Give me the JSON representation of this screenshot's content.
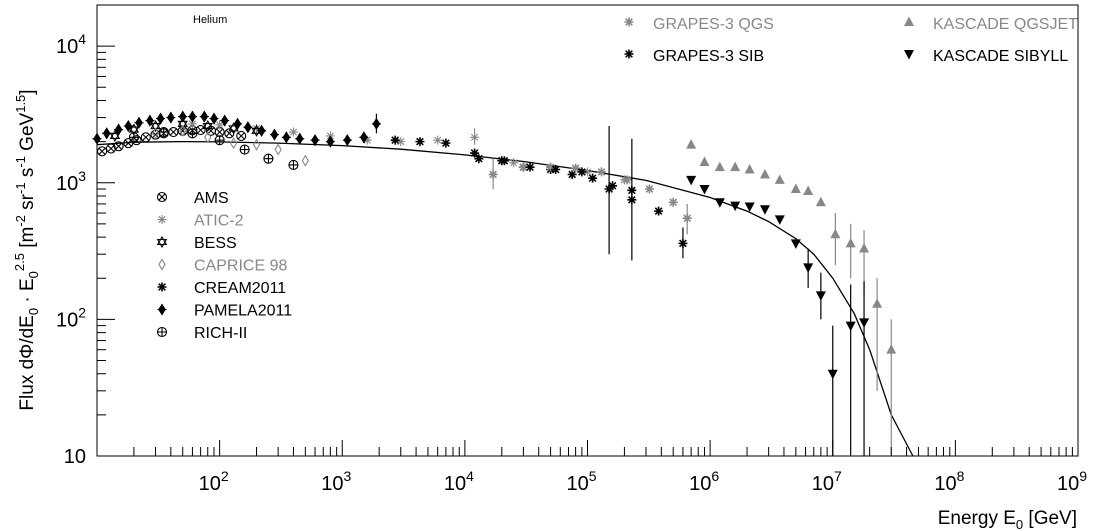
{
  "chart_data": {
    "type": "scatter",
    "x_scale": "log",
    "y_scale": "log",
    "xlim": [
      10,
      1000000000
    ],
    "ylim": [
      10,
      20000
    ],
    "annotation": "Helium",
    "xlabel": "Energy E_0 [GeV]",
    "ylabel": "Flux dΦ/dE_0 · E_0^2.5 [m^-2 sr^-1 s^-1 GeV^1.5]",
    "x_ticks": [
      {
        "value": 100,
        "base": "10",
        "exp": "2"
      },
      {
        "value": 1000,
        "base": "10",
        "exp": "3"
      },
      {
        "value": 10000,
        "base": "10",
        "exp": "4"
      },
      {
        "value": 100000,
        "base": "10",
        "exp": "5"
      },
      {
        "value": 1000000,
        "base": "10",
        "exp": "6"
      },
      {
        "value": 10000000,
        "base": "10",
        "exp": "7"
      },
      {
        "value": 100000000,
        "base": "10",
        "exp": "8"
      },
      {
        "value": 1000000000,
        "base": "10",
        "exp": "9"
      }
    ],
    "y_ticks": [
      {
        "value": 10,
        "base": "10",
        "exp": ""
      },
      {
        "value": 100,
        "base": "10",
        "exp": "2"
      },
      {
        "value": 1000,
        "base": "10",
        "exp": "3"
      },
      {
        "value": 10000,
        "base": "10",
        "exp": "4"
      }
    ],
    "legend_left": [
      {
        "name": "AMS",
        "color": "#000000",
        "marker": "circle-x"
      },
      {
        "name": "ATIC-2",
        "color": "#888888",
        "marker": "asterisk"
      },
      {
        "name": "BESS",
        "color": "#000000",
        "marker": "star-of-david"
      },
      {
        "name": "CAPRICE 98",
        "color": "#888888",
        "marker": "open-diamond"
      },
      {
        "name": "CREAM2011",
        "color": "#000000",
        "marker": "snowflake"
      },
      {
        "name": "PAMELA2011",
        "color": "#000000",
        "marker": "filled-diamond"
      },
      {
        "name": "RICH-II",
        "color": "#000000",
        "marker": "circle-plus"
      }
    ],
    "legend_right": [
      {
        "name": "GRAPES-3 QGS",
        "color": "#888888",
        "marker": "snowflake"
      },
      {
        "name": "KASCADE QGSJET",
        "color": "#888888",
        "marker": "triangle-up"
      },
      {
        "name": "GRAPES-3 SIB",
        "color": "#000000",
        "marker": "snowflake"
      },
      {
        "name": "KASCADE SIBYLL",
        "color": "#000000",
        "marker": "triangle-down"
      }
    ],
    "fit_curve": {
      "color": "#000000",
      "points": [
        [
          10,
          1900
        ],
        [
          20,
          1980
        ],
        [
          50,
          2000
        ],
        [
          100,
          1990
        ],
        [
          300,
          1950
        ],
        [
          1000,
          1870
        ],
        [
          3000,
          1760
        ],
        [
          10000,
          1600
        ],
        [
          30000,
          1430
        ],
        [
          100000,
          1230
        ],
        [
          300000,
          1040
        ],
        [
          1000000,
          780
        ],
        [
          2000000,
          620
        ],
        [
          3000000,
          520
        ],
        [
          5000000,
          390
        ],
        [
          7000000,
          300
        ],
        [
          10000000,
          200
        ],
        [
          15000000,
          110
        ],
        [
          20000000,
          60
        ],
        [
          30000000,
          20
        ],
        [
          45000000,
          8
        ]
      ]
    },
    "series": [
      {
        "name": "AMS",
        "color": "#000000",
        "marker": "circle-x",
        "points": [
          [
            11,
            1700
          ],
          [
            13,
            1780
          ],
          [
            15,
            1850
          ],
          [
            18,
            1950
          ],
          [
            21,
            2050
          ],
          [
            25,
            2150
          ],
          [
            30,
            2250
          ],
          [
            35,
            2300
          ],
          [
            42,
            2350
          ],
          [
            50,
            2400
          ],
          [
            60,
            2420
          ],
          [
            70,
            2430
          ],
          [
            85,
            2400
          ],
          [
            100,
            2350
          ],
          [
            120,
            2300
          ],
          [
            150,
            2200
          ]
        ],
        "errors": []
      },
      {
        "name": "ATIC-2",
        "color": "#888888",
        "marker": "asterisk",
        "points": [
          [
            60,
            2700
          ],
          [
            100,
            2650
          ],
          [
            200,
            2500
          ],
          [
            400,
            2350
          ],
          [
            800,
            2200
          ],
          [
            1600,
            2050
          ],
          [
            3000,
            2000
          ],
          [
            6000,
            2050
          ],
          [
            12000,
            2150
          ],
          [
            25000,
            1400
          ],
          [
            50000,
            1250
          ],
          [
            100000,
            1200
          ],
          [
            200000,
            1050
          ]
        ],
        "errors": [
          [
            12000,
            1900,
            2500
          ]
        ]
      },
      {
        "name": "BESS",
        "color": "#000000",
        "marker": "star-of-david",
        "points": [
          [
            14,
            2200
          ],
          [
            20,
            2450
          ],
          [
            30,
            2600
          ],
          [
            50,
            2700
          ],
          [
            80,
            2600
          ],
          [
            130,
            2500
          ],
          [
            200,
            2400
          ]
        ],
        "errors": []
      },
      {
        "name": "CAPRICE 98",
        "color": "#888888",
        "marker": "open-diamond",
        "points": [
          [
            30,
            2300
          ],
          [
            50,
            2400
          ],
          [
            80,
            2150
          ],
          [
            130,
            1950
          ],
          [
            200,
            1900
          ],
          [
            300,
            1750
          ],
          [
            500,
            1450
          ]
        ],
        "errors": []
      },
      {
        "name": "CREAM2011",
        "color": "#000000",
        "marker": "snowflake",
        "points": [
          [
            2700,
            2050
          ],
          [
            4300,
            2000
          ],
          [
            7000,
            1950
          ],
          [
            12000,
            1650
          ],
          [
            20000,
            1450
          ],
          [
            30000,
            1300
          ],
          [
            50000,
            1250
          ],
          [
            75000,
            1150
          ],
          [
            110000,
            1080
          ],
          [
            160000,
            950
          ],
          [
            230000,
            880
          ]
        ],
        "errors": []
      },
      {
        "name": "PAMELA2011",
        "color": "#000000",
        "marker": "filled-diamond",
        "points": [
          [
            10,
            2100
          ],
          [
            12,
            2300
          ],
          [
            15,
            2450
          ],
          [
            18,
            2600
          ],
          [
            22,
            2750
          ],
          [
            27,
            2850
          ],
          [
            33,
            2950
          ],
          [
            40,
            3000
          ],
          [
            50,
            3050
          ],
          [
            60,
            3050
          ],
          [
            75,
            3050
          ],
          [
            90,
            2950
          ],
          [
            110,
            2850
          ],
          [
            140,
            2700
          ],
          [
            170,
            2550
          ],
          [
            220,
            2400
          ],
          [
            280,
            2250
          ],
          [
            350,
            2150
          ],
          [
            450,
            2100
          ],
          [
            600,
            2050
          ],
          [
            800,
            2000
          ],
          [
            1100,
            2050
          ],
          [
            1500,
            2150
          ],
          [
            1900,
            2700
          ]
        ],
        "errors": [
          [
            1900,
            2300,
            3200
          ]
        ]
      },
      {
        "name": "RICH-II",
        "color": "#000000",
        "marker": "circle-plus",
        "points": [
          [
            20,
            2150
          ],
          [
            35,
            2350
          ],
          [
            60,
            2300
          ],
          [
            100,
            2050
          ],
          [
            160,
            1750
          ],
          [
            250,
            1500
          ],
          [
            400,
            1350
          ]
        ],
        "errors": []
      },
      {
        "name": "GRAPES-3 QGS",
        "color": "#888888",
        "marker": "snowflake",
        "points": [
          [
            17000,
            1150
          ],
          [
            30000,
            1300
          ],
          [
            50000,
            1300
          ],
          [
            80000,
            1280
          ],
          [
            130000,
            1200
          ],
          [
            210000,
            1050
          ],
          [
            320000,
            900
          ],
          [
            500000,
            720
          ],
          [
            650000,
            550
          ]
        ],
        "errors": [
          [
            17000,
            900,
            1500
          ],
          [
            650000,
            420,
            700
          ]
        ]
      },
      {
        "name": "GRAPES-3 SIB",
        "color": "#000000",
        "marker": "snowflake",
        "points": [
          [
            13000,
            1500
          ],
          [
            21000,
            1450
          ],
          [
            34000,
            1300
          ],
          [
            55000,
            1250
          ],
          [
            90000,
            1200
          ],
          [
            150000,
            900
          ],
          [
            230000,
            750
          ],
          [
            380000,
            620
          ],
          [
            600000,
            360
          ]
        ],
        "errors": [
          [
            150000,
            300,
            2600
          ],
          [
            230000,
            270,
            2100
          ],
          [
            600000,
            280,
            470
          ]
        ]
      },
      {
        "name": "KASCADE QGSJET",
        "color": "#888888",
        "marker": "triangle-up",
        "points": [
          [
            700000,
            1900
          ],
          [
            900000,
            1420
          ],
          [
            1200000,
            1300
          ],
          [
            1600000,
            1300
          ],
          [
            2100000,
            1250
          ],
          [
            2800000,
            1150
          ],
          [
            3700000,
            1050
          ],
          [
            5000000,
            900
          ],
          [
            6300000,
            870
          ],
          [
            8000000,
            720
          ],
          [
            10500000,
            420
          ],
          [
            14000000,
            360
          ],
          [
            18000000,
            330
          ],
          [
            23000000,
            130
          ],
          [
            30000000,
            60
          ]
        ],
        "errors": [
          [
            10500000,
            250,
            600
          ],
          [
            14000000,
            200,
            500
          ],
          [
            18000000,
            150,
            450
          ],
          [
            23000000,
            30,
            200
          ],
          [
            30000000,
            10,
            100
          ]
        ]
      },
      {
        "name": "KASCADE SIBYLL",
        "color": "#000000",
        "marker": "triangle-down",
        "points": [
          [
            700000,
            1050
          ],
          [
            900000,
            900
          ],
          [
            1200000,
            720
          ],
          [
            1600000,
            680
          ],
          [
            2100000,
            670
          ],
          [
            2800000,
            640
          ],
          [
            3700000,
            540
          ],
          [
            5000000,
            360
          ],
          [
            6300000,
            240
          ],
          [
            8000000,
            150
          ],
          [
            10000000,
            40
          ],
          [
            14000000,
            90
          ],
          [
            18000000,
            95
          ]
        ],
        "errors": [
          [
            6300000,
            170,
            330
          ],
          [
            8000000,
            100,
            220
          ],
          [
            10000000,
            10,
            90
          ],
          [
            14000000,
            10,
            180
          ],
          [
            18000000,
            10,
            190
          ]
        ]
      }
    ]
  }
}
